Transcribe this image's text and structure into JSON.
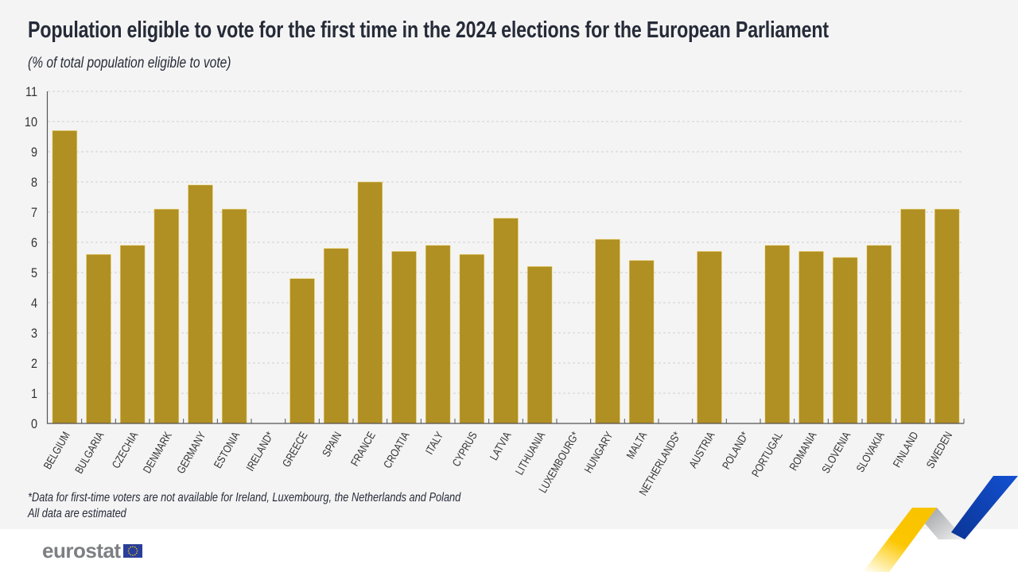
{
  "header": {
    "title": "Population eligible to vote for the first time in the 2024 elections for the European Parliament",
    "subtitle": "(% of total population eligible to vote)"
  },
  "footnotes": [
    "*Data for first-time voters are not available for Ireland, Luxembourg, the Netherlands and Poland",
    "All data are estimated"
  ],
  "logo": {
    "text": "eurostat",
    "flag_icon": "eu-flag-icon"
  },
  "colors": {
    "bar": "#b08f23",
    "grid": "#cfcfcf",
    "axis": "#555555"
  },
  "chart_data": {
    "type": "bar",
    "title": "Population eligible to vote for the first time in the 2024 elections for the European Parliament",
    "subtitle": "(% of total population eligible to vote)",
    "xlabel": "",
    "ylabel": "",
    "ylim": [
      0,
      11
    ],
    "yticks": [
      0,
      1,
      2,
      3,
      4,
      5,
      6,
      7,
      8,
      9,
      10,
      11
    ],
    "grid": true,
    "legend": "none",
    "categories": [
      "BELGIUM",
      "BULGARIA",
      "CZECHIA",
      "DENMARK",
      "GERMANY",
      "ESTONIA",
      "IRELAND*",
      "GREECE",
      "SPAIN",
      "FRANCE",
      "CROATIA",
      "ITALY",
      "CYPRUS",
      "LATVIA",
      "LITHUANIA",
      "LUXEMBOURG*",
      "HUNGARY",
      "MALTA",
      "NETHERLANDS*",
      "AUSTRIA",
      "POLAND*",
      "PORTUGAL",
      "ROMANIA",
      "SLOVENIA",
      "SLOVAKIA",
      "FINLAND",
      "SWEDEN"
    ],
    "values": [
      9.7,
      5.6,
      5.9,
      7.1,
      7.9,
      7.1,
      null,
      4.8,
      5.8,
      8.0,
      5.7,
      5.9,
      5.6,
      6.8,
      5.2,
      null,
      6.1,
      5.4,
      null,
      5.7,
      null,
      5.9,
      5.7,
      5.5,
      5.9,
      7.1,
      7.1
    ]
  }
}
